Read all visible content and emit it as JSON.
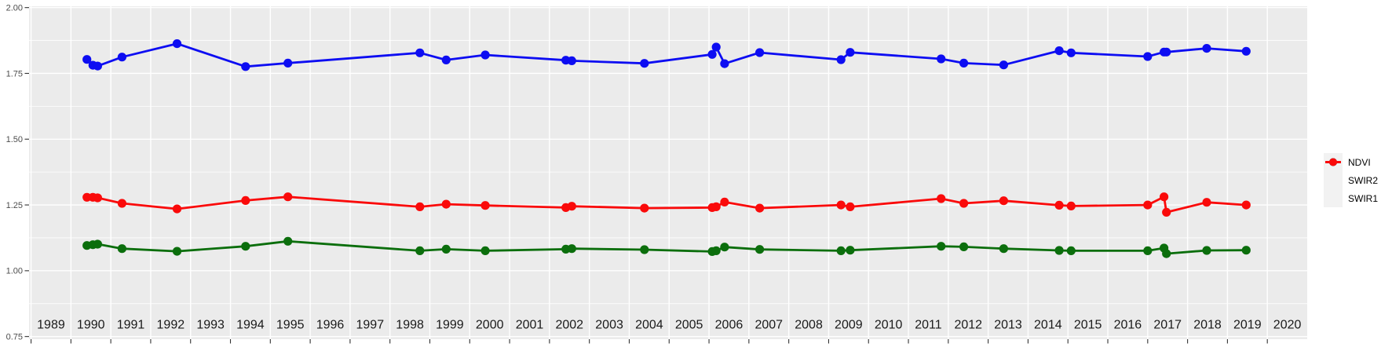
{
  "chart_data": {
    "type": "line",
    "title": "",
    "xlabel": "",
    "ylabel": "",
    "x": [
      1990.4,
      1990.55,
      1990.67,
      1991.28,
      1992.66,
      1994.38,
      1995.44,
      1998.75,
      1999.41,
      2000.39,
      2002.41,
      2002.56,
      2004.38,
      2006.08,
      2006.18,
      2006.39,
      2007.27,
      2009.31,
      2009.54,
      2011.82,
      2012.39,
      2013.39,
      2014.78,
      2015.08,
      2017.0,
      2017.41,
      2017.47,
      2018.48,
      2019.47
    ],
    "series": [
      {
        "name": "NDVI",
        "color": "#0D0DF2",
        "values": [
          1.803,
          1.781,
          1.778,
          1.812,
          1.863,
          1.776,
          1.789,
          1.828,
          1.801,
          1.82,
          1.8,
          1.798,
          1.788,
          1.822,
          1.85,
          1.787,
          1.829,
          1.802,
          1.83,
          1.805,
          1.789,
          1.782,
          1.836,
          1.828,
          1.814,
          1.831,
          1.831,
          1.845,
          1.834
        ]
      },
      {
        "name": "SWIR2",
        "color": "#0B6E0C",
        "values": [
          1.096,
          1.099,
          1.101,
          1.084,
          1.074,
          1.093,
          1.112,
          1.076,
          1.082,
          1.076,
          1.082,
          1.084,
          1.08,
          1.073,
          1.076,
          1.09,
          1.081,
          1.076,
          1.078,
          1.093,
          1.091,
          1.084,
          1.077,
          1.076,
          1.076,
          1.086,
          1.065,
          1.077,
          1.078
        ]
      },
      {
        "name": "SWIR1",
        "color": "#FA0A0A",
        "values": [
          1.279,
          1.279,
          1.277,
          1.256,
          1.235,
          1.267,
          1.281,
          1.243,
          1.253,
          1.248,
          1.24,
          1.245,
          1.238,
          1.24,
          1.243,
          1.261,
          1.238,
          1.25,
          1.243,
          1.274,
          1.256,
          1.266,
          1.249,
          1.246,
          1.25,
          1.281,
          1.222,
          1.26,
          1.25
        ]
      }
    ],
    "x_tick_years": [
      1989,
      1990,
      1991,
      1992,
      1993,
      1994,
      1995,
      1996,
      1997,
      1998,
      1999,
      2000,
      2001,
      2002,
      2003,
      2004,
      2005,
      2006,
      2007,
      2008,
      2009,
      2010,
      2011,
      2012,
      2013,
      2014,
      2015,
      2016,
      2017,
      2018,
      2019,
      2020
    ],
    "x_tick_labels": [
      "1989",
      "1990",
      "1991",
      "1992",
      "1993",
      "1994",
      "1995",
      "1996",
      "1997",
      "1998",
      "1999",
      "2000",
      "2001",
      "2002",
      "2003",
      "2004",
      "2005",
      "2006",
      "2007",
      "2008",
      "2009",
      "2010",
      "2011",
      "2012",
      "2013",
      "2014",
      "2015",
      "2016",
      "2017",
      "2018",
      "2019",
      "2020"
    ],
    "y_ticks": [
      0.75,
      1.0,
      1.25,
      1.5,
      1.75,
      2.0
    ],
    "y_tick_labels": [
      "0.75",
      "1.00",
      "1.25",
      "1.50",
      "1.75",
      "2.00"
    ],
    "y_minor_ticks": [
      0.875,
      1.125,
      1.375,
      1.625,
      1.875
    ],
    "xlim": [
      1988.95,
      2021.0
    ],
    "ylim": [
      0.74,
      2.005
    ],
    "grid": true,
    "legend_position": "right"
  },
  "style": {
    "panel_bg": "#EBEBEB",
    "grid_color": "#FFFFFF",
    "tick_color": "#333333",
    "y_label_color": "#4D4D4D",
    "x_label_color": "#1A1A1A",
    "legend_key_bg": "#F2F2F2"
  },
  "legend": {
    "items": [
      {
        "label": "NDVI",
        "color": "#0D0DF2"
      },
      {
        "label": "SWIR2",
        "color": "#0B6E0C"
      },
      {
        "label": "SWIR1",
        "color": "#FA0A0A"
      }
    ]
  }
}
